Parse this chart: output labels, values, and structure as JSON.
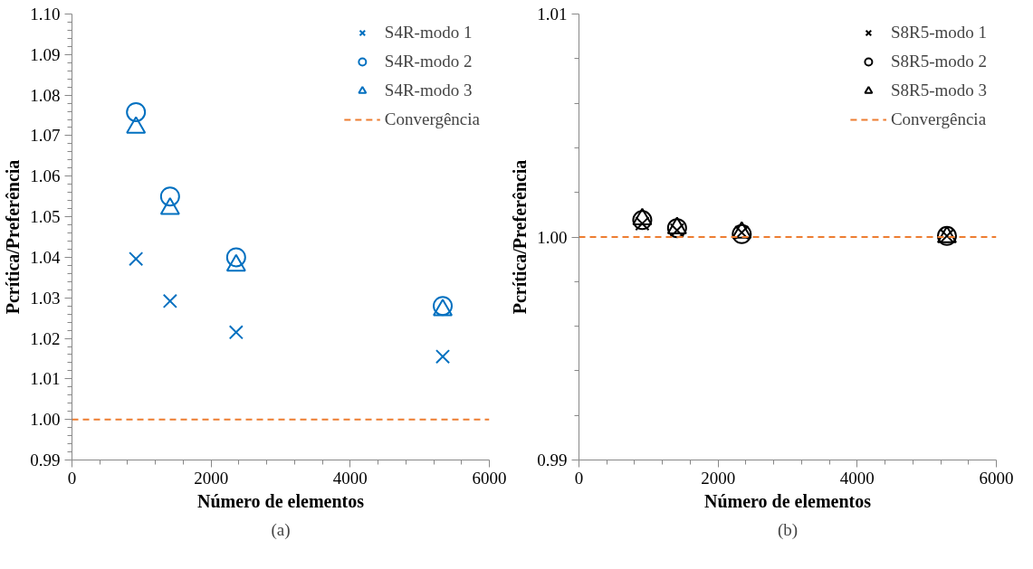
{
  "chart_data": [
    {
      "type": "scatter",
      "xlabel": "Número de elementos",
      "ylabel": "Pcrítica/Preferência",
      "annotations": [
        "(a)"
      ],
      "x": [
        920,
        1410,
        2360,
        5330
      ],
      "series": [
        {
          "name": "S4R-modo 1",
          "color": "#0070c0",
          "marker": "cross",
          "values": [
            1.0396,
            1.0292,
            1.0215,
            1.0155
          ]
        },
        {
          "name": "S4R-modo 2",
          "color": "#0070c0",
          "marker": "circle",
          "values": [
            1.0758,
            1.055,
            1.04,
            1.028
          ]
        },
        {
          "name": "S4R-modo 3",
          "color": "#0070c0",
          "marker": "triangle",
          "values": [
            1.072,
            1.052,
            1.038,
            1.027
          ]
        }
      ],
      "ref_lines": [
        {
          "axis": "y",
          "value": 1.0,
          "label": "Convergência",
          "color": "#ed7d31",
          "line_style": "dashed"
        }
      ],
      "xlim": [
        0,
        6000
      ],
      "ylim": [
        0.99,
        1.1
      ],
      "xticks": [
        0,
        {
          "value": 400,
          "label": null
        },
        {
          "value": 800,
          "label": null
        },
        {
          "value": 1200,
          "label": null
        },
        {
          "value": 1600,
          "label": null
        },
        2000,
        {
          "value": 2400,
          "label": null
        },
        {
          "value": 2800,
          "label": null
        },
        {
          "value": 3200,
          "label": null
        },
        {
          "value": 3600,
          "label": null
        },
        4000,
        {
          "value": 4400,
          "label": null
        },
        {
          "value": 4800,
          "label": null
        },
        {
          "value": 5200,
          "label": null
        },
        {
          "value": 5600,
          "label": null
        },
        6000
      ],
      "yticks": [
        0.99,
        {
          "value": 0.992,
          "label": null
        },
        {
          "value": 0.994,
          "label": null
        },
        {
          "value": 0.996,
          "label": null
        },
        {
          "value": 0.998,
          "label": null
        },
        {
          "value": 1.0,
          "label": "1.00"
        },
        {
          "value": 1.002,
          "label": null
        },
        {
          "value": 1.004,
          "label": null
        },
        {
          "value": 1.006,
          "label": null
        },
        {
          "value": 1.008,
          "label": null
        },
        1.01,
        {
          "value": 1.012,
          "label": null
        },
        {
          "value": 1.014,
          "label": null
        },
        {
          "value": 1.016,
          "label": null
        },
        {
          "value": 1.018,
          "label": null
        },
        1.02,
        {
          "value": 1.022,
          "label": null
        },
        {
          "value": 1.024,
          "label": null
        },
        {
          "value": 1.026,
          "label": null
        },
        {
          "value": 1.028,
          "label": null
        },
        1.03,
        {
          "value": 1.032,
          "label": null
        },
        {
          "value": 1.034,
          "label": null
        },
        {
          "value": 1.036,
          "label": null
        },
        {
          "value": 1.038,
          "label": null
        },
        1.04,
        {
          "value": 1.042,
          "label": null
        },
        {
          "value": 1.044,
          "label": null
        },
        {
          "value": 1.046,
          "label": null
        },
        {
          "value": 1.048,
          "label": null
        },
        1.05,
        {
          "value": 1.052,
          "label": null
        },
        {
          "value": 1.054,
          "label": null
        },
        {
          "value": 1.056,
          "label": null
        },
        {
          "value": 1.058,
          "label": null
        },
        1.06,
        {
          "value": 1.062,
          "label": null
        },
        {
          "value": 1.064,
          "label": null
        },
        {
          "value": 1.066,
          "label": null
        },
        {
          "value": 1.068,
          "label": null
        },
        1.07,
        {
          "value": 1.072,
          "label": null
        },
        {
          "value": 1.074,
          "label": null
        },
        {
          "value": 1.076,
          "label": null
        },
        {
          "value": 1.078,
          "label": null
        },
        1.08,
        {
          "value": 1.082,
          "label": null
        },
        {
          "value": 1.084,
          "label": null
        },
        {
          "value": 1.086,
          "label": null
        },
        {
          "value": 1.088,
          "label": null
        },
        1.09,
        {
          "value": 1.092,
          "label": null
        },
        {
          "value": 1.094,
          "label": null
        },
        {
          "value": 1.096,
          "label": null
        },
        {
          "value": 1.098,
          "label": null
        },
        {
          "value": 1.1,
          "label": "1.10"
        }
      ],
      "grid": false,
      "legend": "top right"
    },
    {
      "type": "scatter",
      "xlabel": "Número de elementos",
      "ylabel": "Pcrítica/Preferência",
      "annotations": [
        "(b)"
      ],
      "x": [
        910,
        1410,
        2340,
        5290
      ],
      "series": [
        {
          "name": "S8R5-modo 1",
          "color": "#000000",
          "marker": "cross",
          "values": [
            1.0006,
            1.0003,
            1.0002,
            1.00005
          ]
        },
        {
          "name": "S8R5-modo 2",
          "color": "#000000",
          "marker": "circle",
          "values": [
            1.00076,
            1.0004,
            1.00013,
            1.00005
          ]
        },
        {
          "name": "S8R5-modo 3",
          "color": "#000000",
          "marker": "triangle",
          "values": [
            1.0008,
            1.0004,
            1.0002,
            1.0
          ]
        }
      ],
      "ref_lines": [
        {
          "axis": "y",
          "value": 1.0,
          "label": "Convergência",
          "color": "#ed7d31",
          "line_style": "dashed"
        }
      ],
      "xlim": [
        0,
        6000
      ],
      "ylim": [
        0.99,
        1.01
      ],
      "xticks": [
        0,
        {
          "value": 400,
          "label": null
        },
        {
          "value": 800,
          "label": null
        },
        {
          "value": 1200,
          "label": null
        },
        {
          "value": 1600,
          "label": null
        },
        2000,
        {
          "value": 2400,
          "label": null
        },
        {
          "value": 2800,
          "label": null
        },
        {
          "value": 3200,
          "label": null
        },
        {
          "value": 3600,
          "label": null
        },
        4000,
        {
          "value": 4400,
          "label": null
        },
        {
          "value": 4800,
          "label": null
        },
        {
          "value": 5200,
          "label": null
        },
        {
          "value": 5600,
          "label": null
        },
        6000
      ],
      "yticks": [
        0.99,
        {
          "value": 0.992,
          "label": null
        },
        {
          "value": 0.994,
          "label": null
        },
        {
          "value": 0.996,
          "label": null
        },
        {
          "value": 0.998,
          "label": null
        },
        {
          "value": 1.0,
          "label": "1.00"
        },
        {
          "value": 1.002,
          "label": null
        },
        {
          "value": 1.004,
          "label": null
        },
        {
          "value": 1.006,
          "label": null
        },
        {
          "value": 1.008,
          "label": null
        },
        1.01
      ],
      "grid": false,
      "legend": "top right"
    }
  ]
}
